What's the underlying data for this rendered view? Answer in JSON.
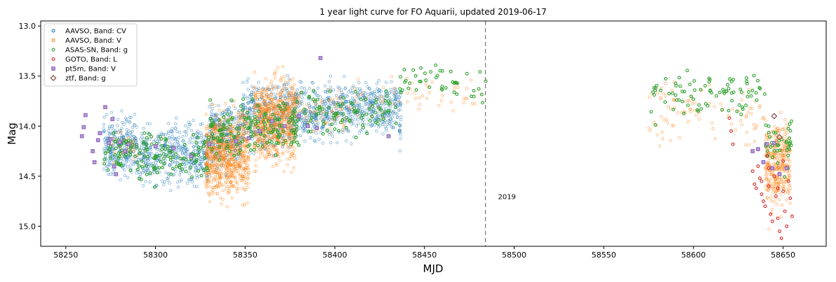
{
  "chart_data": {
    "type": "scatter",
    "title": "1 year light curve for FO Aquarii, updated 2019-06-17",
    "xlabel": "MJD",
    "ylabel": "Mag",
    "xlim": [
      58236,
      58674
    ],
    "ylim": [
      15.2,
      12.95
    ],
    "y_inverted": true,
    "xticks": [
      58250,
      58300,
      58350,
      58400,
      58450,
      58500,
      58550,
      58600,
      58650
    ],
    "yticks": [
      13.0,
      13.5,
      14.0,
      14.5,
      15.0
    ],
    "grid": false,
    "legend_position": "top-left",
    "annotations": [
      {
        "type": "vline",
        "x": 58484,
        "style": "dashed",
        "color": "#808080"
      },
      {
        "type": "text",
        "text": "2019",
        "x": 58491,
        "y": 14.73
      }
    ],
    "series": [
      {
        "name": "AAVSO, Band: CV",
        "marker": "circle-open",
        "color": "#1f77b4",
        "segments": [
          {
            "x_start": 58271,
            "x_end": 58290,
            "center": 14.2,
            "spread": 0.42,
            "n": 260
          },
          {
            "x_start": 58290,
            "x_end": 58330,
            "center": 14.28,
            "spread": 0.42,
            "n": 420
          },
          {
            "x_start": 58330,
            "x_end": 58348,
            "center": 14.08,
            "spread": 0.48,
            "n": 260
          },
          {
            "x_start": 58348,
            "x_end": 58378,
            "center": 13.9,
            "spread": 0.52,
            "n": 360
          },
          {
            "x_start": 58378,
            "x_end": 58410,
            "center": 13.85,
            "spread": 0.4,
            "n": 340
          },
          {
            "x_start": 58410,
            "x_end": 58436,
            "center": 13.82,
            "spread": 0.36,
            "n": 260
          },
          {
            "x_start": 58436,
            "x_end": 58437,
            "center": 13.9,
            "spread": 0.4,
            "n": 20
          }
        ]
      },
      {
        "name": "AAVSO, Band: V",
        "marker": "circle-open",
        "color": "#ff7f0e",
        "segments": [
          {
            "x_start": 58272,
            "x_end": 58290,
            "center": 14.2,
            "spread": 0.22,
            "n": 30
          },
          {
            "x_start": 58328,
            "x_end": 58352,
            "center": 14.28,
            "spread": 0.62,
            "n": 700
          },
          {
            "x_start": 58355,
            "x_end": 58378,
            "center": 13.95,
            "spread": 0.58,
            "n": 650
          },
          {
            "x_start": 58378,
            "x_end": 58410,
            "center": 13.85,
            "spread": 0.32,
            "n": 70
          },
          {
            "x_start": 58410,
            "x_end": 58480,
            "center": 13.7,
            "spread": 0.3,
            "n": 55
          },
          {
            "x_start": 58575,
            "x_end": 58640,
            "center": 13.85,
            "spread": 0.42,
            "n": 90
          },
          {
            "x_start": 58640,
            "x_end": 58654,
            "center": 14.4,
            "spread": 0.65,
            "n": 320
          }
        ]
      },
      {
        "name": "ASAS-SN, Band: g",
        "marker": "circle-open",
        "color": "#2ca02c",
        "segments": [
          {
            "x_start": 58271,
            "x_end": 58330,
            "center": 14.3,
            "spread": 0.32,
            "n": 150
          },
          {
            "x_start": 58330,
            "x_end": 58380,
            "center": 14.05,
            "spread": 0.42,
            "n": 160
          },
          {
            "x_start": 58380,
            "x_end": 58435,
            "center": 13.85,
            "spread": 0.32,
            "n": 90
          },
          {
            "x_start": 58435,
            "x_end": 58485,
            "center": 13.6,
            "spread": 0.26,
            "n": 45
          },
          {
            "x_start": 58575,
            "x_end": 58640,
            "center": 13.7,
            "spread": 0.32,
            "n": 85
          },
          {
            "x_start": 58640,
            "x_end": 58655,
            "center": 14.2,
            "spread": 0.4,
            "n": 40
          }
        ]
      },
      {
        "name": "GOTO, Band: L",
        "marker": "circle-open",
        "color": "#d62728",
        "points": [
          [
            58620,
            13.92
          ],
          [
            58621,
            14.05
          ],
          [
            58622,
            14.18
          ],
          [
            58633,
            14.45
          ],
          [
            58634,
            14.58
          ],
          [
            58635,
            14.62
          ],
          [
            58636,
            14.4
          ],
          [
            58637,
            14.52
          ],
          [
            58638,
            14.68
          ],
          [
            58639,
            14.75
          ],
          [
            58640,
            14.8
          ],
          [
            58641,
            14.3
          ],
          [
            58642,
            14.6
          ],
          [
            58643,
            14.88
          ],
          [
            58644,
            14.95
          ],
          [
            58645,
            14.5
          ],
          [
            58646,
            14.7
          ],
          [
            58647,
            14.92
          ],
          [
            58648,
            15.05
          ],
          [
            58649,
            15.12
          ],
          [
            58650,
            14.65
          ],
          [
            58651,
            14.85
          ],
          [
            58652,
            15.0
          ],
          [
            58653,
            14.55
          ],
          [
            58654,
            14.72
          ],
          [
            58655,
            14.9
          ],
          [
            58638,
            14.55
          ],
          [
            58642,
            14.42
          ],
          [
            58647,
            14.62
          ],
          [
            58650,
            14.35
          ]
        ]
      },
      {
        "name": "pt5m, Band: V",
        "marker": "square-open",
        "color": "#9467bd",
        "points": [
          [
            58259,
            14.1
          ],
          [
            58260,
            14.01
          ],
          [
            58261,
            13.89
          ],
          [
            58265,
            14.25
          ],
          [
            58266,
            14.36
          ],
          [
            58268,
            14.14
          ],
          [
            58269,
            14.07
          ],
          [
            58272,
            13.81
          ],
          [
            58274,
            14.17
          ],
          [
            58275,
            14.13
          ],
          [
            58276,
            13.93
          ],
          [
            58277,
            14.4
          ],
          [
            58278,
            14.48
          ],
          [
            58280,
            14.16
          ],
          [
            58283,
            14.25
          ],
          [
            58285,
            14.18
          ],
          [
            58300,
            14.2
          ],
          [
            58310,
            14.22
          ],
          [
            58320,
            14.3
          ],
          [
            58330,
            14.18
          ],
          [
            58345,
            14.15
          ],
          [
            58352,
            14.12
          ],
          [
            58358,
            14.05
          ],
          [
            58365,
            13.95
          ],
          [
            58372,
            14.0
          ],
          [
            58380,
            13.9
          ],
          [
            58385,
            14.0
          ],
          [
            58390,
            14.02
          ],
          [
            58392,
            13.32
          ],
          [
            58430,
            14.1
          ],
          [
            58633,
            14.25
          ],
          [
            58636,
            14.23
          ],
          [
            58639,
            14.36
          ],
          [
            58641,
            14.18
          ],
          [
            58644,
            14.42
          ],
          [
            58645,
            14.17
          ],
          [
            58648,
            14.48
          ],
          [
            58652,
            14.42
          ]
        ]
      },
      {
        "name": "ztf, Band: g",
        "marker": "diamond-open",
        "color": "#8c564b",
        "points": [
          [
            58645,
            13.9
          ],
          [
            58648,
            14.11
          ]
        ]
      }
    ]
  }
}
